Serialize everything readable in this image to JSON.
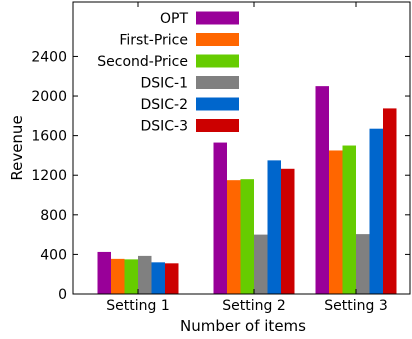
{
  "chart_data": {
    "type": "bar",
    "xlabel": "Number of items",
    "ylabel": "Revenue",
    "categories": [
      "Setting 1",
      "Setting 2",
      "Setting 3"
    ],
    "ylim": [
      0,
      2950
    ],
    "yticks": [
      0,
      400,
      800,
      1200,
      1600,
      2000,
      2400
    ],
    "legend_position": "top-left",
    "grid": false,
    "series": [
      {
        "name": "OPT",
        "color": "#990099",
        "values": [
          425,
          1530,
          2100
        ]
      },
      {
        "name": "First-Price",
        "color": "#ff6600",
        "values": [
          355,
          1150,
          1450
        ]
      },
      {
        "name": "Second-Price",
        "color": "#66cc00",
        "values": [
          350,
          1160,
          1500
        ]
      },
      {
        "name": "DSIC-1",
        "color": "#808080",
        "values": [
          385,
          600,
          605
        ]
      },
      {
        "name": "DSIC-2",
        "color": "#0066cc",
        "values": [
          320,
          1350,
          1670
        ]
      },
      {
        "name": "DSIC-3",
        "color": "#cc0000",
        "values": [
          310,
          1265,
          1875
        ]
      }
    ]
  }
}
